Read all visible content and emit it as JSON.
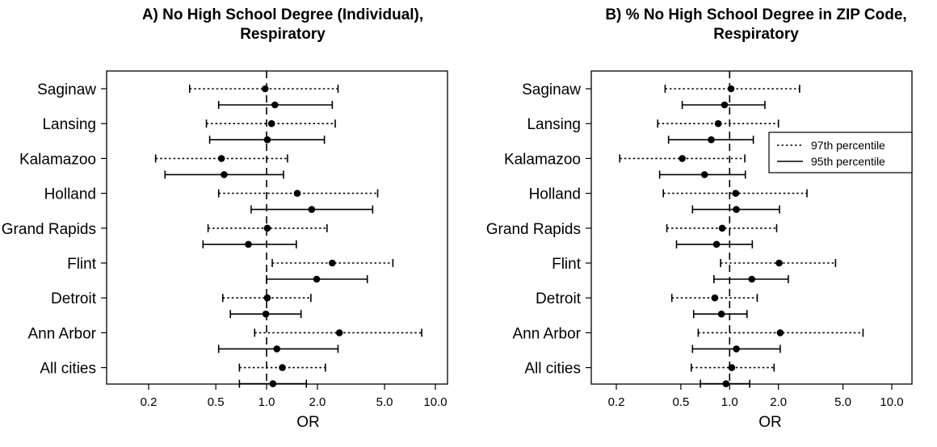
{
  "chart_data": [
    {
      "type": "forest",
      "title": "A) No High School Degree (Individual), Respiratory",
      "title_lines": [
        "A) No High School Degree (Individual),",
        "Respiratory"
      ],
      "xlabel": "OR",
      "x_scale": "log",
      "xlim": [
        0.2,
        10.0
      ],
      "x_ticks": [
        0.2,
        0.5,
        1.0,
        2.0,
        5.0,
        10.0
      ],
      "x_tick_labels": [
        "0.2",
        "0.5",
        "1.0",
        "2.0",
        "5.0",
        "10.0"
      ],
      "reference_line": 1.0,
      "categories": [
        "Saginaw",
        "Lansing",
        "Kalamazoo",
        "Holland",
        "Grand Rapids",
        "Flint",
        "Detroit",
        "Ann Arbor",
        "All cities"
      ],
      "series": [
        {
          "key": "97",
          "line_style": "dotted",
          "est": [
            0.98,
            1.07,
            0.54,
            1.52,
            1.01,
            2.45,
            1.01,
            2.7,
            1.24
          ],
          "low": [
            0.35,
            0.44,
            0.22,
            0.52,
            0.45,
            1.08,
            0.55,
            0.85,
            0.69
          ],
          "high": [
            2.65,
            2.55,
            1.33,
            4.55,
            2.28,
            5.6,
            1.83,
            8.3,
            2.23
          ]
        },
        {
          "key": "95",
          "line_style": "solid",
          "est": [
            1.12,
            1.01,
            0.56,
            1.85,
            0.78,
            1.98,
            0.99,
            1.15,
            1.09
          ],
          "low": [
            0.52,
            0.46,
            0.25,
            0.81,
            0.42,
            1.0,
            0.61,
            0.52,
            0.69
          ],
          "high": [
            2.45,
            2.2,
            1.26,
            4.25,
            1.5,
            3.95,
            1.6,
            2.65,
            1.72
          ]
        }
      ]
    },
    {
      "type": "forest",
      "title": "B) % No High School Degree in ZIP Code, Respiratory",
      "title_lines": [
        "B) % No High School Degree in ZIP Code,",
        "Respiratory"
      ],
      "xlabel": "OR",
      "x_scale": "log",
      "xlim": [
        0.2,
        10.0
      ],
      "x_ticks": [
        0.2,
        0.5,
        1.0,
        2.0,
        5.0,
        10.0
      ],
      "x_tick_labels": [
        "0.2",
        "0.5",
        "1.0",
        "2.0",
        "5.0",
        "10.0"
      ],
      "reference_line": 1.0,
      "categories": [
        "Saginaw",
        "Lansing",
        "Kalamazoo",
        "Holland",
        "Grand Rapids",
        "Flint",
        "Detroit",
        "Ann Arbor",
        "All cities"
      ],
      "legend": {
        "placement": "top-right",
        "entries": [
          {
            "label": "97th percentile",
            "line_style": "dotted"
          },
          {
            "label": "95th percentile",
            "line_style": "solid"
          }
        ]
      },
      "series": [
        {
          "key": "97",
          "name": "97th percentile",
          "line_style": "dotted",
          "est": [
            1.02,
            0.85,
            0.51,
            1.09,
            0.9,
            2.02,
            0.81,
            2.05,
            1.03
          ],
          "low": [
            0.4,
            0.36,
            0.21,
            0.39,
            0.41,
            0.88,
            0.44,
            0.64,
            0.58
          ],
          "high": [
            2.7,
            2.0,
            1.24,
            3.0,
            1.95,
            4.5,
            1.48,
            6.65,
            1.88
          ]
        },
        {
          "key": "95",
          "name": "95th percentile",
          "line_style": "solid",
          "est": [
            0.93,
            0.77,
            0.7,
            1.1,
            0.83,
            1.37,
            0.89,
            1.1,
            0.95
          ],
          "low": [
            0.51,
            0.42,
            0.37,
            0.59,
            0.47,
            0.8,
            0.6,
            0.59,
            0.66
          ],
          "high": [
            1.65,
            1.4,
            1.25,
            2.03,
            1.38,
            2.3,
            1.28,
            2.05,
            1.33
          ]
        }
      ]
    }
  ]
}
